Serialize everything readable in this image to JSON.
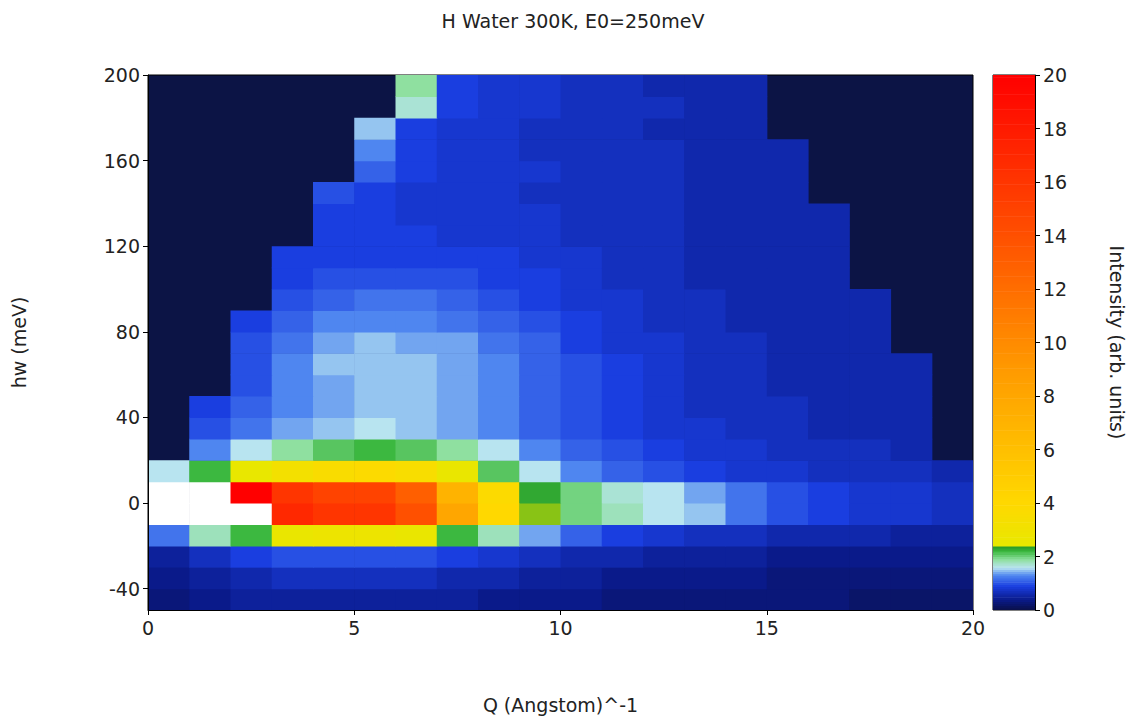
{
  "chart_data": {
    "type": "heatmap",
    "title": "H Water 300K, E0=250meV",
    "x_label": "Q (Angstom)^-1",
    "y_label": "hw (meV)",
    "xlim": [
      0,
      20
    ],
    "xticks": [
      0,
      5,
      10,
      15,
      20
    ],
    "ylim": [
      -50,
      200
    ],
    "yticks": [
      -40,
      0,
      40,
      80,
      120,
      160,
      200
    ],
    "grid": false,
    "x_edges": [
      0,
      1,
      2,
      3,
      4,
      5,
      6,
      7,
      8,
      9,
      10,
      11,
      12,
      13,
      14,
      15,
      16,
      17,
      18,
      19,
      20
    ],
    "y_edges": [
      -50,
      -40,
      -30,
      -20,
      -10,
      0,
      10,
      20,
      30,
      40,
      50,
      60,
      70,
      80,
      90,
      100,
      110,
      120,
      130,
      140,
      150,
      160,
      170,
      180,
      190,
      200
    ],
    "values": [
      [
        0.3,
        0.4,
        0.5,
        0.5,
        0.5,
        0.5,
        0.5,
        0.5,
        0.4,
        0.4,
        0.4,
        0.3,
        0.3,
        0.3,
        0.3,
        0.3,
        0.3,
        0.2,
        0.2,
        0.2
      ],
      [
        0.4,
        0.5,
        0.6,
        0.7,
        0.7,
        0.7,
        0.7,
        0.6,
        0.6,
        0.5,
        0.5,
        0.4,
        0.4,
        0.4,
        0.4,
        0.3,
        0.3,
        0.3,
        0.3,
        0.3
      ],
      [
        0.5,
        0.7,
        0.9,
        1.0,
        1.0,
        1.0,
        1.0,
        0.9,
        0.8,
        0.7,
        0.6,
        0.6,
        0.5,
        0.5,
        0.5,
        0.4,
        0.4,
        0.4,
        0.4,
        0.4
      ],
      [
        1.2,
        1.8,
        2.2,
        2.6,
        2.8,
        2.8,
        2.6,
        2.2,
        1.8,
        1.4,
        1.1,
        0.9,
        0.8,
        0.7,
        0.7,
        0.6,
        0.6,
        0.6,
        0.5,
        0.5
      ],
      [
        24,
        23,
        21,
        17,
        16,
        16,
        14,
        8,
        4,
        2.4,
        2.0,
        1.8,
        1.6,
        1.5,
        1.2,
        1.0,
        0.9,
        0.8,
        0.8,
        0.7
      ],
      [
        23,
        22,
        20,
        16,
        15,
        15,
        13,
        7,
        3.8,
        2.3,
        2.0,
        1.7,
        1.6,
        1.4,
        1.2,
        1.0,
        0.9,
        0.8,
        0.8,
        0.7
      ],
      [
        1.6,
        2.2,
        2.5,
        3.2,
        3.6,
        3.8,
        3.5,
        2.6,
        2.1,
        1.6,
        1.3,
        1.1,
        1.0,
        0.9,
        0.8,
        0.8,
        0.7,
        0.7,
        0.7,
        0.6
      ],
      [
        null,
        1.3,
        1.6,
        1.9,
        2.1,
        2.2,
        2.1,
        1.9,
        1.6,
        1.3,
        1.1,
        1.0,
        0.9,
        0.8,
        0.8,
        0.7,
        0.7,
        0.7,
        0.6,
        null
      ],
      [
        null,
        1.0,
        1.2,
        1.4,
        1.5,
        1.6,
        1.5,
        1.4,
        1.3,
        1.1,
        1.0,
        0.9,
        0.8,
        0.8,
        0.7,
        0.7,
        0.6,
        0.6,
        0.6,
        null
      ],
      [
        null,
        0.9,
        1.1,
        1.3,
        1.4,
        1.5,
        1.5,
        1.4,
        1.3,
        1.1,
        1.0,
        0.9,
        0.8,
        0.7,
        0.7,
        0.7,
        0.6,
        0.6,
        0.6,
        null
      ],
      [
        null,
        null,
        1.0,
        1.3,
        1.4,
        1.5,
        1.5,
        1.4,
        1.3,
        1.1,
        1.0,
        0.9,
        0.8,
        0.7,
        0.7,
        0.6,
        0.6,
        0.6,
        0.6,
        null
      ],
      [
        null,
        null,
        1.0,
        1.3,
        1.5,
        1.5,
        1.5,
        1.4,
        1.3,
        1.1,
        1.0,
        0.9,
        0.8,
        0.7,
        0.7,
        0.6,
        0.6,
        0.6,
        0.6,
        null
      ],
      [
        null,
        null,
        1.0,
        1.2,
        1.4,
        1.5,
        1.4,
        1.4,
        1.2,
        1.1,
        0.9,
        0.8,
        0.8,
        0.7,
        0.7,
        0.6,
        0.6,
        0.6,
        null,
        null
      ],
      [
        null,
        null,
        0.9,
        1.1,
        1.3,
        1.3,
        1.3,
        1.2,
        1.1,
        1.0,
        0.9,
        0.8,
        0.7,
        0.7,
        0.6,
        0.6,
        0.6,
        0.6,
        null,
        null
      ],
      [
        null,
        null,
        null,
        1.0,
        1.1,
        1.2,
        1.2,
        1.1,
        1.0,
        0.9,
        0.8,
        0.8,
        0.7,
        0.7,
        0.6,
        0.6,
        0.6,
        0.6,
        null,
        null
      ],
      [
        null,
        null,
        null,
        0.9,
        1.0,
        1.0,
        1.0,
        1.0,
        0.9,
        0.9,
        0.8,
        0.7,
        0.7,
        0.6,
        0.6,
        0.6,
        0.6,
        null,
        null,
        null
      ],
      [
        null,
        null,
        null,
        0.9,
        0.9,
        0.9,
        0.9,
        0.9,
        0.9,
        0.8,
        0.8,
        0.7,
        0.7,
        0.6,
        0.6,
        0.6,
        0.6,
        null,
        null,
        null
      ],
      [
        null,
        null,
        null,
        null,
        0.9,
        0.9,
        0.9,
        0.8,
        0.8,
        0.8,
        0.7,
        0.7,
        0.7,
        0.6,
        0.6,
        0.6,
        0.6,
        null,
        null,
        null
      ],
      [
        null,
        null,
        null,
        null,
        0.9,
        0.9,
        0.8,
        0.8,
        0.8,
        0.8,
        0.7,
        0.7,
        0.7,
        0.6,
        0.6,
        0.6,
        0.6,
        null,
        null,
        null
      ],
      [
        null,
        null,
        null,
        null,
        1.0,
        0.9,
        0.8,
        0.8,
        0.8,
        0.7,
        0.7,
        0.7,
        0.7,
        0.6,
        0.6,
        0.6,
        null,
        null,
        null,
        null
      ],
      [
        null,
        null,
        null,
        null,
        null,
        1.1,
        0.9,
        0.8,
        0.8,
        0.8,
        0.7,
        0.7,
        0.7,
        0.6,
        0.6,
        0.6,
        null,
        null,
        null,
        null
      ],
      [
        null,
        null,
        null,
        null,
        null,
        1.3,
        0.9,
        0.8,
        0.8,
        0.7,
        0.7,
        0.7,
        0.7,
        0.6,
        0.6,
        0.6,
        null,
        null,
        null,
        null
      ],
      [
        null,
        null,
        null,
        null,
        null,
        1.5,
        0.9,
        0.8,
        0.8,
        0.7,
        0.7,
        0.7,
        0.6,
        0.6,
        0.6,
        null,
        null,
        null,
        null,
        null
      ],
      [
        null,
        null,
        null,
        null,
        null,
        null,
        1.7,
        0.9,
        0.8,
        0.8,
        0.7,
        0.7,
        0.7,
        0.6,
        0.6,
        null,
        null,
        null,
        null,
        null
      ],
      [
        null,
        null,
        null,
        null,
        null,
        null,
        1.9,
        0.9,
        0.8,
        0.8,
        0.7,
        0.7,
        0.6,
        0.6,
        0.6,
        null,
        null,
        null,
        null,
        null
      ]
    ],
    "colorbar": {
      "range": [
        0,
        20
      ],
      "ticks": [
        0,
        2,
        4,
        6,
        8,
        10,
        12,
        14,
        16,
        18,
        20
      ],
      "label": "Intensity (arb. units)"
    }
  }
}
